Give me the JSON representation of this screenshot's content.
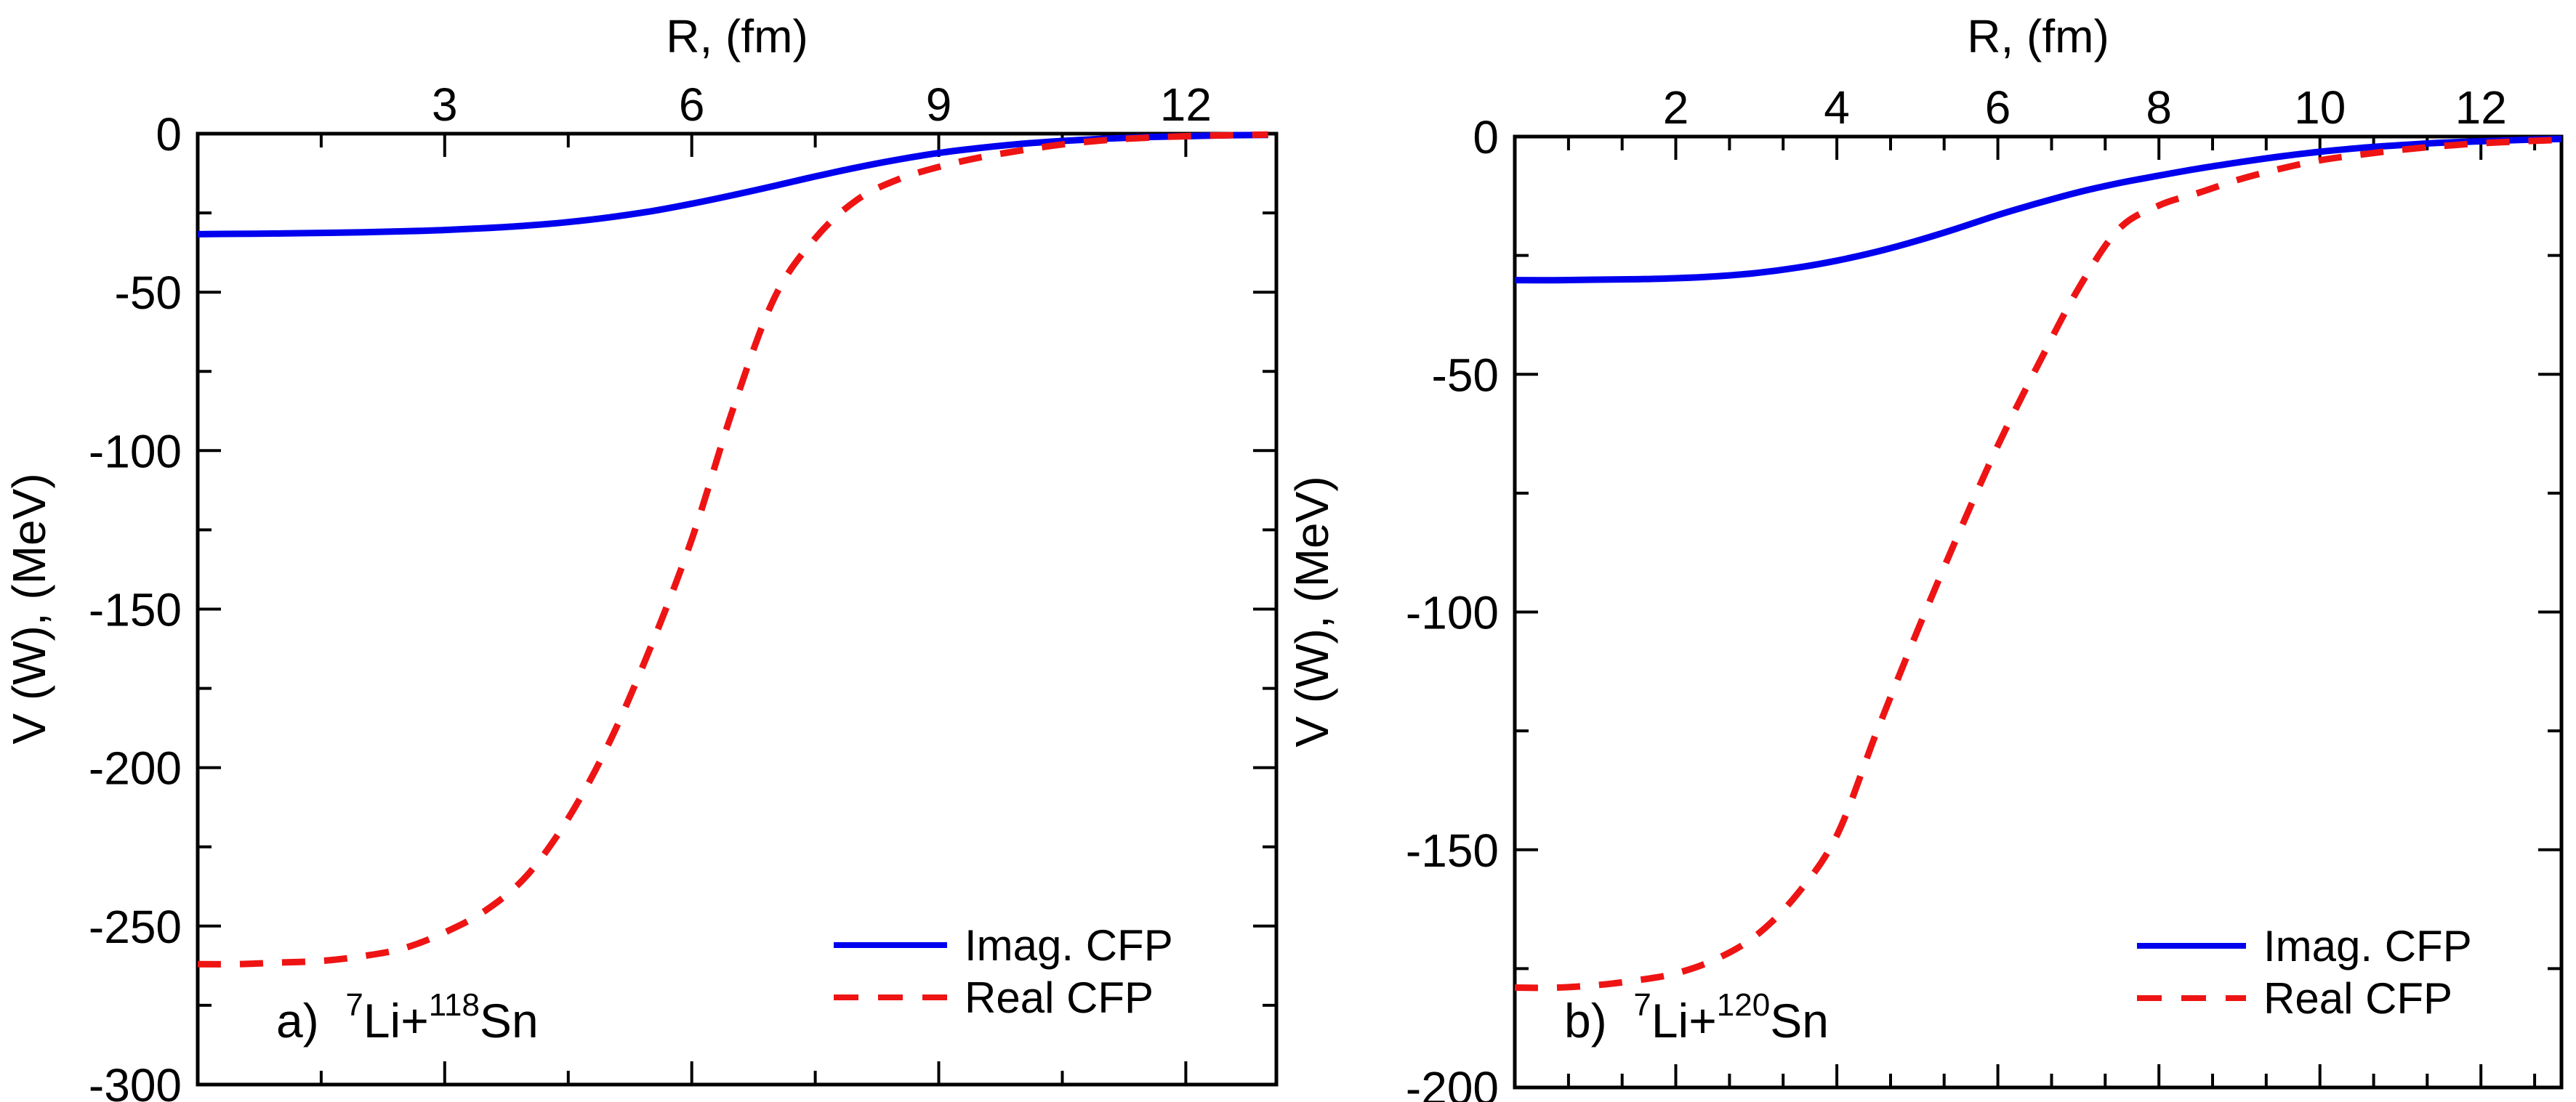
{
  "figure": {
    "background": "#ffffff",
    "colors": {
      "imag": "#0000EE",
      "real": "#EE1414",
      "axis": "#000000",
      "text": "#000000"
    },
    "legend": {
      "imag_label": "Imag. CFP",
      "real_label": "Real CFP"
    }
  },
  "chart_data": [
    {
      "type": "line",
      "panel": "a",
      "title_top": "R, (fm)",
      "ylabel": "V (W), (MeV)",
      "panel_label_parts": [
        {
          "t": "a)  ",
          "sup": false
        },
        {
          "t": "7",
          "sup": true
        },
        {
          "t": "Li+",
          "sup": false
        },
        {
          "t": "118",
          "sup": true
        },
        {
          "t": "Sn",
          "sup": false
        }
      ],
      "xlim": [
        0,
        13.1
      ],
      "ylim": [
        -300,
        0
      ],
      "x_major_ticks": [
        3,
        6,
        9,
        12
      ],
      "x_minor_ticks": [
        1.5,
        4.5,
        7.5,
        10.5
      ],
      "y_major_ticks": [
        0,
        -50,
        -100,
        -150,
        -200,
        -250,
        -300
      ],
      "y_minor_ticks": [
        -25,
        -75,
        -125,
        -175,
        -225,
        -275
      ],
      "grid": false,
      "legend_position": "lower right",
      "series": [
        {
          "name": "Imag. CFP",
          "style": "solid",
          "color_key": "imag",
          "points": [
            [
              0,
              -31.7
            ],
            [
              0.5,
              -31.6
            ],
            [
              1,
              -31.5
            ],
            [
              1.5,
              -31.3
            ],
            [
              2,
              -31.1
            ],
            [
              2.5,
              -30.8
            ],
            [
              3,
              -30.4
            ],
            [
              3.5,
              -29.8
            ],
            [
              4,
              -29.0
            ],
            [
              4.5,
              -27.9
            ],
            [
              5,
              -26.4
            ],
            [
              5.5,
              -24.5
            ],
            [
              6,
              -22.1
            ],
            [
              6.5,
              -19.4
            ],
            [
              7,
              -16.5
            ],
            [
              7.5,
              -13.5
            ],
            [
              8,
              -10.7
            ],
            [
              8.5,
              -8.2
            ],
            [
              9,
              -6.1
            ],
            [
              9.5,
              -4.5
            ],
            [
              10,
              -3.2
            ],
            [
              10.5,
              -2.3
            ],
            [
              11,
              -1.6
            ],
            [
              11.5,
              -1.1
            ],
            [
              12,
              -0.8
            ],
            [
              12.5,
              -0.5
            ],
            [
              13,
              -0.4
            ]
          ]
        },
        {
          "name": "Real CFP",
          "style": "dashed",
          "color_key": "real",
          "points": [
            [
              0,
              -262
            ],
            [
              0.5,
              -262
            ],
            [
              1,
              -261.5
            ],
            [
              1.5,
              -261
            ],
            [
              2,
              -259.5
            ],
            [
              2.5,
              -257
            ],
            [
              3,
              -252
            ],
            [
              3.5,
              -245
            ],
            [
              4,
              -234
            ],
            [
              4.5,
              -216
            ],
            [
              5,
              -192
            ],
            [
              5.5,
              -162
            ],
            [
              6,
              -128
            ],
            [
              6.5,
              -87
            ],
            [
              7,
              -52
            ],
            [
              7.5,
              -33
            ],
            [
              8,
              -21
            ],
            [
              8.5,
              -14.5
            ],
            [
              9,
              -10.5
            ],
            [
              9.5,
              -7.5
            ],
            [
              10,
              -5.3
            ],
            [
              10.5,
              -3.4
            ],
            [
              11,
              -2.1
            ],
            [
              11.5,
              -1.3
            ],
            [
              12,
              -0.8
            ],
            [
              12.5,
              -0.5
            ],
            [
              13,
              -0.3
            ]
          ]
        }
      ]
    },
    {
      "type": "line",
      "panel": "b",
      "title_top": "R, (fm)",
      "ylabel": "V (W), (MeV)",
      "panel_label_parts": [
        {
          "t": "b)  ",
          "sup": false
        },
        {
          "t": "7",
          "sup": true
        },
        {
          "t": "Li+",
          "sup": false
        },
        {
          "t": "120",
          "sup": true
        },
        {
          "t": "Sn",
          "sup": false
        }
      ],
      "xlim": [
        0,
        13.0
      ],
      "ylim": [
        -200,
        0
      ],
      "x_major_ticks": [
        2,
        4,
        6,
        8,
        10,
        12
      ],
      "x_minor_ticks": [
        0.667,
        1.333,
        2.667,
        3.333,
        4.667,
        5.333,
        6.667,
        7.333,
        8.667,
        9.333,
        10.667,
        11.333,
        12.667
      ],
      "y_major_ticks": [
        0,
        -50,
        -100,
        -150,
        -200
      ],
      "y_minor_ticks": [
        -25,
        -75,
        -125,
        -175
      ],
      "grid": false,
      "legend_position": "lower right",
      "series": [
        {
          "name": "Imag. CFP",
          "style": "solid",
          "color_key": "imag",
          "points": [
            [
              0,
              -30.2
            ],
            [
              0.5,
              -30.2
            ],
            [
              1,
              -30.1
            ],
            [
              1.5,
              -30.0
            ],
            [
              2,
              -29.8
            ],
            [
              2.5,
              -29.4
            ],
            [
              3,
              -28.7
            ],
            [
              3.5,
              -27.6
            ],
            [
              4,
              -26.1
            ],
            [
              4.5,
              -24.2
            ],
            [
              5,
              -21.9
            ],
            [
              5.5,
              -19.3
            ],
            [
              6,
              -16.5
            ],
            [
              6.5,
              -14.0
            ],
            [
              7,
              -11.7
            ],
            [
              7.5,
              -9.8
            ],
            [
              8,
              -8.2
            ],
            [
              8.5,
              -6.7
            ],
            [
              9,
              -5.4
            ],
            [
              9.5,
              -4.2
            ],
            [
              10,
              -3.2
            ],
            [
              10.5,
              -2.4
            ],
            [
              11,
              -1.8
            ],
            [
              11.5,
              -1.3
            ],
            [
              12,
              -1.0
            ],
            [
              12.5,
              -0.7
            ],
            [
              13,
              -0.5
            ]
          ]
        },
        {
          "name": "Real CFP",
          "style": "dashed",
          "color_key": "real",
          "points": [
            [
              0,
              -179
            ],
            [
              0.5,
              -179
            ],
            [
              1,
              -178.5
            ],
            [
              1.5,
              -177.5
            ],
            [
              2,
              -176
            ],
            [
              2.5,
              -173
            ],
            [
              3,
              -168
            ],
            [
              3.5,
              -159.5
            ],
            [
              4,
              -147
            ],
            [
              4.5,
              -125
            ],
            [
              5,
              -104
            ],
            [
              5.5,
              -84
            ],
            [
              6,
              -65
            ],
            [
              6.5,
              -48
            ],
            [
              7,
              -32
            ],
            [
              7.5,
              -19.5
            ],
            [
              8,
              -14.5
            ],
            [
              8.5,
              -11.8
            ],
            [
              9,
              -9.0
            ],
            [
              9.5,
              -6.8
            ],
            [
              10,
              -5.0
            ],
            [
              10.5,
              -3.8
            ],
            [
              11,
              -2.8
            ],
            [
              11.5,
              -2.0
            ],
            [
              12,
              -1.4
            ],
            [
              12.5,
              -1.0
            ],
            [
              13,
              -0.7
            ]
          ]
        }
      ]
    }
  ]
}
